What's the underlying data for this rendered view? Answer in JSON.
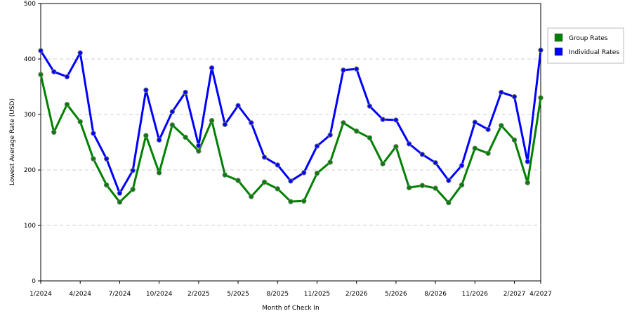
{
  "chart_data": {
    "type": "line",
    "x_label": "Month of Check In",
    "y_label": "Lowest Average Rate (USD)",
    "categories": [
      "1/2024",
      null,
      null,
      "4/2024",
      null,
      null,
      "7/2024",
      null,
      null,
      "10/2024",
      null,
      null,
      "2/2025",
      null,
      null,
      "5/2025",
      null,
      null,
      "8/2025",
      null,
      null,
      "11/2025",
      null,
      null,
      "2/2026",
      null,
      null,
      "5/2026",
      null,
      null,
      "8/2026",
      null,
      null,
      "11/2026",
      null,
      null,
      "2/2027",
      null,
      "4/2027"
    ],
    "series": [
      {
        "name": "Group Rates",
        "color": "#008000",
        "values": [
          372,
          268,
          318,
          287,
          220,
          173,
          142,
          165,
          262,
          195,
          281,
          259,
          234,
          289,
          191,
          181,
          152,
          178,
          166,
          143,
          144,
          194,
          214,
          285,
          270,
          258,
          211,
          242,
          168,
          172,
          167,
          141,
          173,
          239,
          230,
          280,
          254,
          177,
          330
        ]
      },
      {
        "name": "Individual Rates",
        "color": "#0000ff",
        "values": [
          415,
          377,
          368,
          411,
          266,
          220,
          158,
          199,
          344,
          254,
          305,
          340,
          244,
          384,
          282,
          316,
          285,
          223,
          209,
          180,
          195,
          243,
          263,
          380,
          382,
          315,
          291,
          290,
          247,
          228,
          213,
          181,
          208,
          286,
          273,
          340,
          332,
          215,
          416
        ]
      }
    ],
    "ylim": [
      0,
      500
    ],
    "yticks": [
      0,
      100,
      200,
      300,
      400,
      500
    ],
    "grid": true,
    "legend": "right"
  }
}
